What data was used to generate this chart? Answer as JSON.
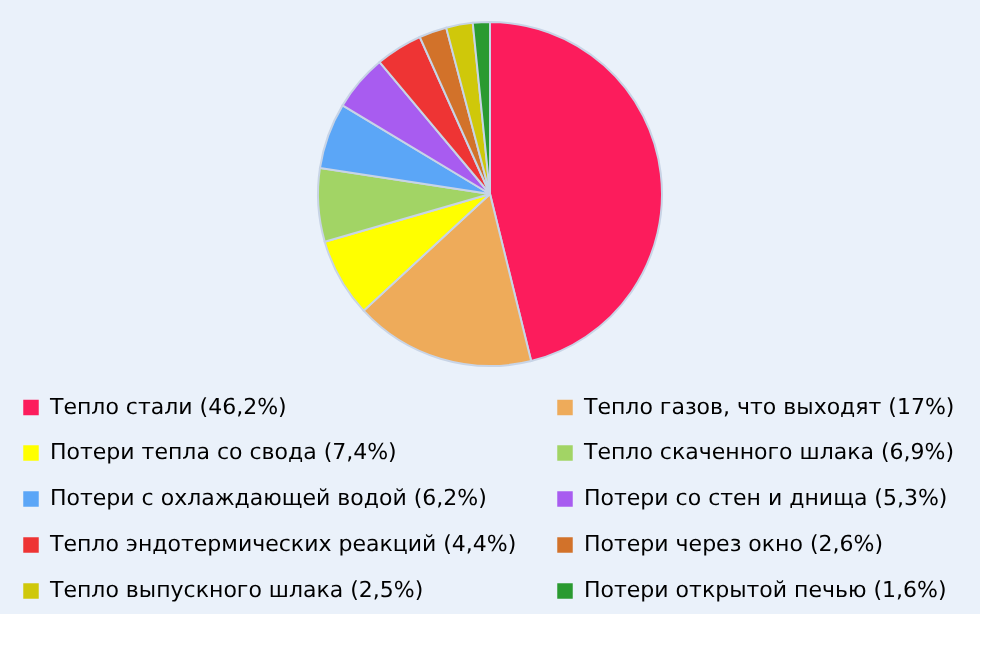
{
  "chart_data": {
    "type": "pie",
    "categories": [
      "Тепло стали (46,2%)",
      "Тепло газов, что выходят (17%)",
      "Потери тепла со свода (7,4%)",
      "Тепло скаченного шлака (6,9%)",
      "Потери с охлаждающей водой (6,2%)",
      "Потери со стен и днища (5,3%)",
      "Тепло эндотермических реакций (4,4%)",
      "Потери через окно (2,6%)",
      "Тепло выпускного шлака (2,5%)",
      "Потери открытой печью (1,6%)"
    ],
    "values": [
      46.2,
      17,
      7.4,
      6.9,
      6.2,
      5.3,
      4.4,
      2.6,
      2.5,
      1.6
    ],
    "colors": [
      "#fc1c5c",
      "#eeab5a",
      "#ffff00",
      "#a2d465",
      "#5ba6f7",
      "#a85cf0",
      "#ee3434",
      "#d2722a",
      "#cfc80a",
      "#2a9a30"
    ],
    "legend": "bottom"
  }
}
